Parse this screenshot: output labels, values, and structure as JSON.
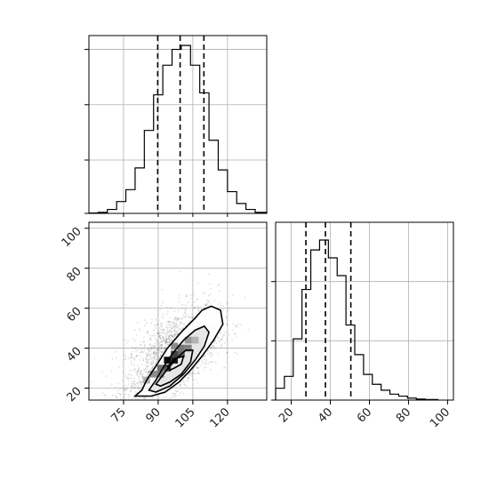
{
  "chart_data": {
    "type": "corner",
    "panels": [
      {
        "panel": "top-left",
        "type": "histogram",
        "variable": "x",
        "xlim": [
          60,
          137
        ],
        "grid": true,
        "bins": [
          {
            "x0": 60,
            "x1": 64,
            "count": 0.2
          },
          {
            "x0": 64,
            "x1": 68,
            "count": 0.5
          },
          {
            "x0": 68,
            "x1": 72,
            "count": 2
          },
          {
            "x0": 72,
            "x1": 76,
            "count": 6
          },
          {
            "x0": 76,
            "x1": 80,
            "count": 12
          },
          {
            "x0": 80,
            "x1": 84,
            "count": 23
          },
          {
            "x0": 84,
            "x1": 88,
            "count": 42
          },
          {
            "x0": 88,
            "x1": 92,
            "count": 60
          },
          {
            "x0": 92,
            "x1": 96,
            "count": 75
          },
          {
            "x0": 96,
            "x1": 100,
            "count": 83
          },
          {
            "x0": 100,
            "x1": 104,
            "count": 85
          },
          {
            "x0": 104,
            "x1": 108,
            "count": 75
          },
          {
            "x0": 108,
            "x1": 112,
            "count": 61
          },
          {
            "x0": 112,
            "x1": 116,
            "count": 37
          },
          {
            "x0": 116,
            "x1": 120,
            "count": 22
          },
          {
            "x0": 120,
            "x1": 124,
            "count": 11
          },
          {
            "x0": 124,
            "x1": 128,
            "count": 5
          },
          {
            "x0": 128,
            "x1": 132,
            "count": 2
          },
          {
            "x0": 132,
            "x1": 137,
            "count": 0.5
          }
        ],
        "ylim": [
          0,
          90
        ],
        "yticks": [
          0,
          27,
          55,
          83
        ],
        "quantiles": [
          89.8,
          99.5,
          109.8
        ]
      },
      {
        "panel": "bottom-right",
        "type": "histogram",
        "variable": "y",
        "xlim": [
          12,
          103
        ],
        "xticks": [
          20,
          40,
          60,
          80,
          100
        ],
        "grid": true,
        "bins": [
          {
            "x0": 12,
            "x1": 16.5,
            "count": 6
          },
          {
            "x0": 16.5,
            "x1": 21,
            "count": 12
          },
          {
            "x0": 21,
            "x1": 25.5,
            "count": 31
          },
          {
            "x0": 25.5,
            "x1": 30,
            "count": 56
          },
          {
            "x0": 30,
            "x1": 34.5,
            "count": 76
          },
          {
            "x0": 34.5,
            "x1": 39,
            "count": 81
          },
          {
            "x0": 39,
            "x1": 43.5,
            "count": 72
          },
          {
            "x0": 43.5,
            "x1": 48,
            "count": 63
          },
          {
            "x0": 48,
            "x1": 52.5,
            "count": 38
          },
          {
            "x0": 52.5,
            "x1": 57,
            "count": 23
          },
          {
            "x0": 57,
            "x1": 61.5,
            "count": 13
          },
          {
            "x0": 61.5,
            "x1": 66,
            "count": 8
          },
          {
            "x0": 66,
            "x1": 70.5,
            "count": 5
          },
          {
            "x0": 70.5,
            "x1": 75,
            "count": 3
          },
          {
            "x0": 75,
            "x1": 79.5,
            "count": 2
          },
          {
            "x0": 79.5,
            "x1": 84,
            "count": 1
          },
          {
            "x0": 84,
            "x1": 88.5,
            "count": 0.5
          },
          {
            "x0": 88.5,
            "x1": 95,
            "count": 0.3
          }
        ],
        "ylim": [
          0,
          90
        ],
        "yticks": [
          0,
          30,
          60
        ],
        "quantiles": [
          27.5,
          37.5,
          50.5
        ]
      },
      {
        "panel": "bottom-left",
        "type": "2d-histogram-contour",
        "xvar": "x",
        "yvar": "y",
        "xlim": [
          60,
          137
        ],
        "ylim": [
          14,
          103
        ],
        "xticks": [
          75,
          90,
          105,
          120
        ],
        "yticks": [
          20,
          40,
          60,
          80,
          100
        ],
        "grid": true,
        "center": [
          96,
          34
        ],
        "scatter_trend": {
          "slope": 0.7,
          "x_sd": 10,
          "y_sd": 11
        },
        "contours": [
          {
            "level": 0.95,
            "points": [
              [
                80,
                16
              ],
              [
                83,
                19
              ],
              [
                85,
                24
              ],
              [
                89,
                31
              ],
              [
                94,
                40
              ],
              [
                100,
                48
              ],
              [
                106,
                55
              ],
              [
                109,
                59
              ],
              [
                113,
                61
              ],
              [
                117,
                59
              ],
              [
                118,
                52
              ],
              [
                114,
                44
              ],
              [
                109,
                36
              ],
              [
                104,
                29
              ],
              [
                99,
                23
              ],
              [
                93,
                18
              ],
              [
                87,
                16
              ]
            ]
          },
          {
            "level": 0.68,
            "points": [
              [
                86,
                19
              ],
              [
                89,
                24
              ],
              [
                92,
                30
              ],
              [
                96,
                37
              ],
              [
                101,
                44
              ],
              [
                106,
                49
              ],
              [
                110,
                51
              ],
              [
                112,
                48
              ],
              [
                110,
                41
              ],
              [
                106,
                34
              ],
              [
                101,
                27
              ],
              [
                95,
                21
              ],
              [
                89,
                18
              ]
            ]
          },
          {
            "level": 0.39,
            "points": [
              [
                89,
                22
              ],
              [
                93,
                28
              ],
              [
                98,
                35
              ],
              [
                102,
                39
              ],
              [
                105,
                39
              ],
              [
                104,
                33
              ],
              [
                100,
                27
              ],
              [
                95,
                23
              ],
              [
                91,
                21
              ]
            ]
          },
          {
            "level": 0.12,
            "points": [
              [
                94,
                31
              ],
              [
                98,
                35
              ],
              [
                101,
                36
              ],
              [
                100,
                32
              ],
              [
                97,
                30
              ],
              [
                95,
                29
              ]
            ]
          }
        ],
        "density_cells": [
          {
            "x": 94,
            "y": 34,
            "shade": 0.95
          },
          {
            "x": 97,
            "y": 34,
            "shade": 0.9
          },
          {
            "x": 97,
            "y": 37,
            "shade": 0.75
          },
          {
            "x": 100,
            "y": 37,
            "shade": 0.6
          },
          {
            "x": 94,
            "y": 30,
            "shade": 0.7
          },
          {
            "x": 91,
            "y": 30,
            "shade": 0.55
          },
          {
            "x": 100,
            "y": 40,
            "shade": 0.55
          },
          {
            "x": 103,
            "y": 40,
            "shade": 0.5
          },
          {
            "x": 103,
            "y": 44,
            "shade": 0.4
          },
          {
            "x": 88,
            "y": 27,
            "shade": 0.45
          },
          {
            "x": 91,
            "y": 27,
            "shade": 0.5
          },
          {
            "x": 97,
            "y": 41,
            "shade": 0.45
          },
          {
            "x": 106,
            "y": 44,
            "shade": 0.3
          },
          {
            "x": 85,
            "y": 24,
            "shade": 0.3
          }
        ]
      }
    ]
  }
}
